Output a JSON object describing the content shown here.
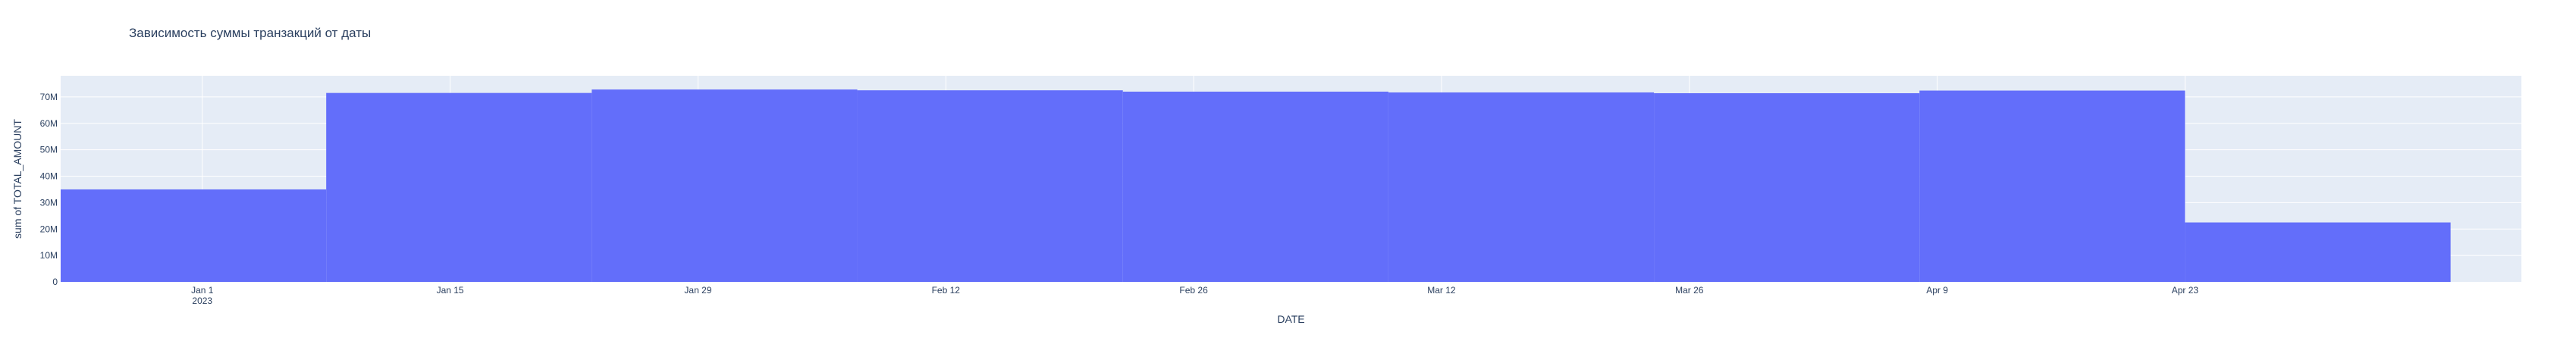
{
  "chart_data": {
    "type": "bar",
    "title": "Зависимость суммы транзакций от даты",
    "xlabel": "DATE",
    "ylabel": "sum of TOTAL_AMOUNT",
    "bin_edges": [
      "2022-12-24",
      "2023-01-08",
      "2023-01-23",
      "2023-02-07",
      "2023-02-22",
      "2023-03-09",
      "2023-03-24",
      "2023-04-08",
      "2023-04-23",
      "2023-05-08"
    ],
    "values": [
      35000000,
      71500000,
      72800000,
      72500000,
      72000000,
      71700000,
      71400000,
      72400000,
      22500000
    ],
    "ylim": [
      0,
      78000000
    ],
    "xlim": [
      "2022-12-24",
      "2023-05-12"
    ],
    "x_tick_labels": [
      {
        "date": "2023-01-01",
        "label": "Jan 1",
        "sub": "2023"
      },
      {
        "date": "2023-01-15",
        "label": "Jan 15"
      },
      {
        "date": "2023-01-29",
        "label": "Jan 29"
      },
      {
        "date": "2023-02-12",
        "label": "Feb 12"
      },
      {
        "date": "2023-02-26",
        "label": "Feb 26"
      },
      {
        "date": "2023-03-12",
        "label": "Mar 12"
      },
      {
        "date": "2023-03-26",
        "label": "Mar 26"
      },
      {
        "date": "2023-04-09",
        "label": "Apr 9"
      },
      {
        "date": "2023-04-23",
        "label": "Apr 23"
      }
    ],
    "y_ticks": [
      {
        "value": 0,
        "label": "0"
      },
      {
        "value": 10000000,
        "label": "10M"
      },
      {
        "value": 20000000,
        "label": "20M"
      },
      {
        "value": 30000000,
        "label": "30M"
      },
      {
        "value": 40000000,
        "label": "40M"
      },
      {
        "value": 50000000,
        "label": "50M"
      },
      {
        "value": 60000000,
        "label": "60M"
      },
      {
        "value": 70000000,
        "label": "70M"
      }
    ],
    "grid": true,
    "colors": {
      "bar": "#636efa",
      "plot_bg": "#e5ecf6",
      "grid": "#ffffff",
      "text": "#2a3f5f",
      "paper": "#ffffff"
    }
  }
}
